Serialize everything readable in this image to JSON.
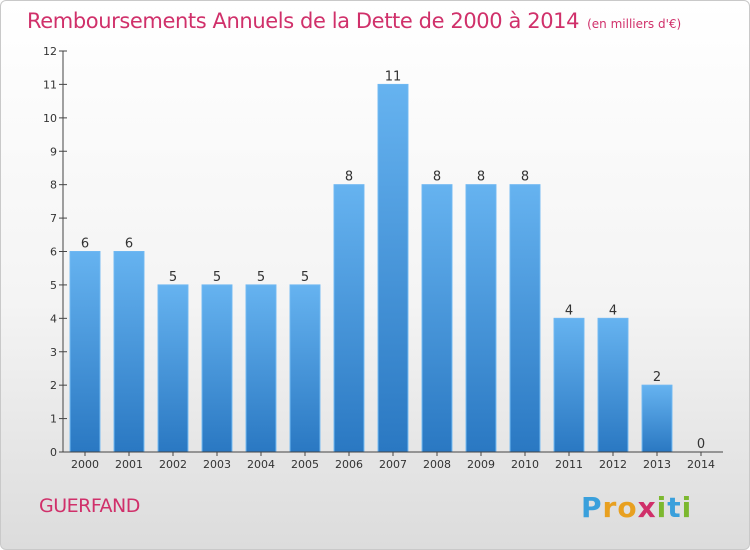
{
  "chart_data": {
    "type": "bar",
    "title": "Remboursements Annuels de la Dette de 2000 à 2014",
    "subtitle": "(en milliers d'€)",
    "categories": [
      "2000",
      "2001",
      "2002",
      "2003",
      "2004",
      "2005",
      "2006",
      "2007",
      "2008",
      "2009",
      "2010",
      "2011",
      "2012",
      "2013",
      "2014"
    ],
    "values": [
      6,
      6,
      5,
      5,
      5,
      5,
      8,
      11,
      8,
      8,
      8,
      4,
      4,
      2,
      0
    ],
    "ylim": [
      0,
      12
    ],
    "yticks": [
      0,
      1,
      2,
      3,
      4,
      5,
      6,
      7,
      8,
      9,
      10,
      11,
      12
    ],
    "grid": false,
    "bar_color": "#3e8fd8",
    "bar_color_light": "#63b0ee",
    "bar_color_dark": "#2677c4"
  },
  "footer": {
    "commune": "GUERFAND",
    "logo_text": "Proxiti"
  },
  "colors": {
    "title": "#d0306a"
  }
}
